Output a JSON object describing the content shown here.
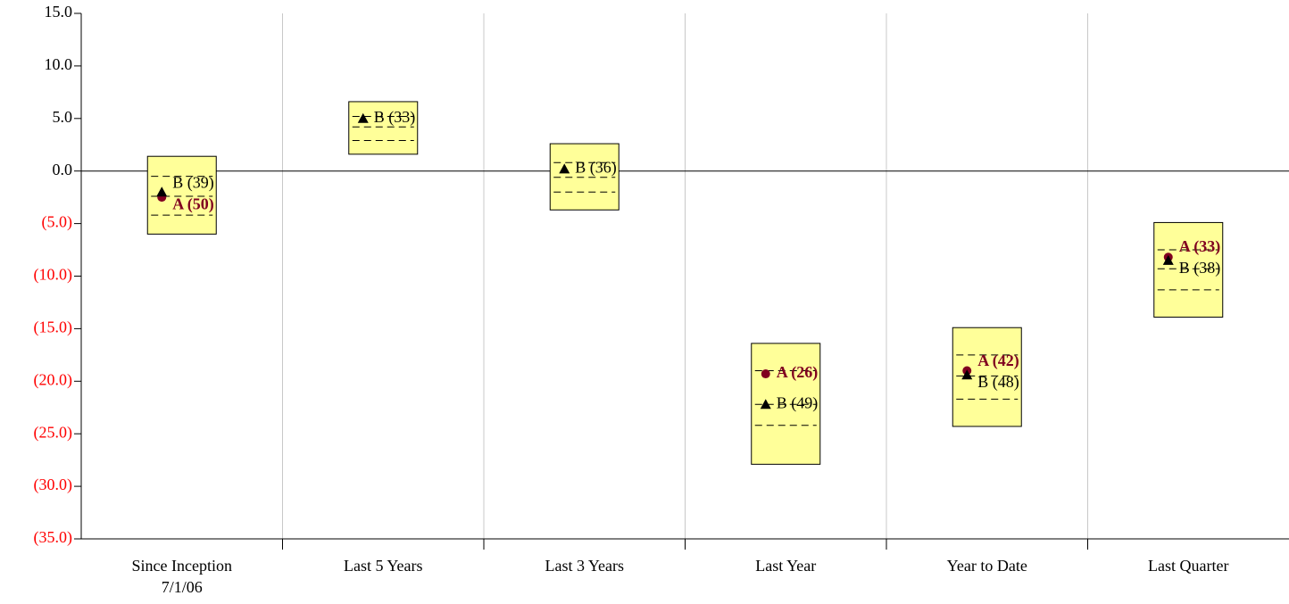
{
  "chart_data": {
    "type": "floating_box",
    "categories": [
      [
        "Since Inception",
        "7/1/06"
      ],
      [
        "Last 5 Years"
      ],
      [
        "Last 3 Years"
      ],
      [
        "Last Year"
      ],
      [
        "Year to Date"
      ],
      [
        "Last Quarter"
      ]
    ],
    "boxes": {
      "color": "#ffff99",
      "high": [
        1.4,
        6.6,
        2.6,
        -16.4,
        -14.9,
        -4.9
      ],
      "p25": [
        -0.5,
        5.2,
        0.8,
        -19.0,
        -17.5,
        -7.5
      ],
      "median": [
        -2.4,
        4.2,
        -0.6,
        -22.2,
        -19.5,
        -9.3
      ],
      "p75": [
        -4.2,
        2.9,
        -2.0,
        -24.2,
        -21.7,
        -11.3
      ],
      "low": [
        -6.0,
        1.6,
        -3.7,
        -27.9,
        -24.3,
        -13.9
      ]
    },
    "series": [
      {
        "name": "A",
        "color": "#800020",
        "marker": "circle",
        "values": [
          -2.5,
          null,
          null,
          -19.3,
          -19.0,
          -8.2
        ],
        "point_labels": [
          "A (50)",
          null,
          null,
          "A (26)",
          "A (42)",
          "A (33)"
        ]
      },
      {
        "name": "B",
        "color": "#000000",
        "marker": "triangle",
        "values": [
          -2.0,
          5.0,
          0.2,
          -22.2,
          -19.4,
          -8.5
        ],
        "point_labels": [
          "B (39)",
          "B (33)",
          "B (36)",
          "B (49)",
          "B (48)",
          "B (38)"
        ]
      }
    ],
    "ylim": [
      -35,
      15
    ],
    "yticks": [
      {
        "value": -35,
        "label": "(35.0)"
      },
      {
        "value": -30,
        "label": "(30.0)"
      },
      {
        "value": -25,
        "label": "(25.0)"
      },
      {
        "value": -20,
        "label": "(20.0)"
      },
      {
        "value": -15,
        "label": "(15.0)"
      },
      {
        "value": -10,
        "label": "(10.0)"
      },
      {
        "value": -5,
        "label": "(5.0)"
      },
      {
        "value": 0,
        "label": "0.0"
      },
      {
        "value": 5,
        "label": "5.0"
      },
      {
        "value": 10,
        "label": "10.0"
      },
      {
        "value": 15,
        "label": "15.0"
      }
    ],
    "negative_tick_color": "#ff0000",
    "grid": true
  }
}
